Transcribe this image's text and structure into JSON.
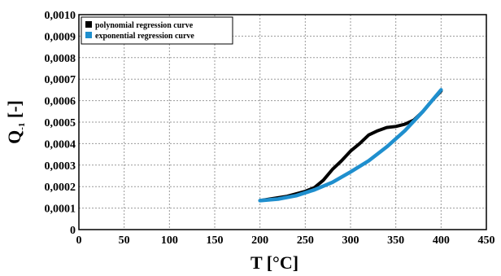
{
  "chart_data": {
    "type": "line",
    "xlabel": "T [°C]",
    "ylabel": {
      "main": "Q",
      "sub": "-1",
      "unit": "[-]"
    },
    "xlim": [
      0,
      450
    ],
    "ylim": [
      0,
      0.001
    ],
    "xticks": [
      "0",
      "50",
      "100",
      "150",
      "200",
      "250",
      "300",
      "350",
      "400",
      "450"
    ],
    "yticks": [
      "0",
      "0,0001",
      "0,0002",
      "0,0003",
      "0,0004",
      "0,0005",
      "0,0006",
      "0,0007",
      "0,0008",
      "0,0009",
      "0,0010"
    ],
    "grid": true,
    "legend_position": "top-left",
    "series": [
      {
        "name": "polynomial regression curve",
        "color": "#000000",
        "x": [
          200,
          230,
          250,
          260,
          270,
          280,
          290,
          300,
          310,
          320,
          330,
          340,
          350,
          360,
          370,
          380,
          390,
          400
        ],
        "y": [
          0.000135,
          0.000155,
          0.000178,
          0.000195,
          0.00023,
          0.00028,
          0.00032,
          0.000365,
          0.0004,
          0.00044,
          0.00046,
          0.000475,
          0.00048,
          0.00049,
          0.00051,
          0.00055,
          0.0006,
          0.000645
        ]
      },
      {
        "name": "exponential regression curve",
        "color": "#1f8fce",
        "x": [
          200,
          220,
          240,
          260,
          280,
          300,
          320,
          340,
          360,
          380,
          400
        ],
        "y": [
          0.000135,
          0.000142,
          0.000158,
          0.000185,
          0.00022,
          0.000268,
          0.00032,
          0.000385,
          0.00046,
          0.00055,
          0.00065
        ]
      }
    ]
  }
}
